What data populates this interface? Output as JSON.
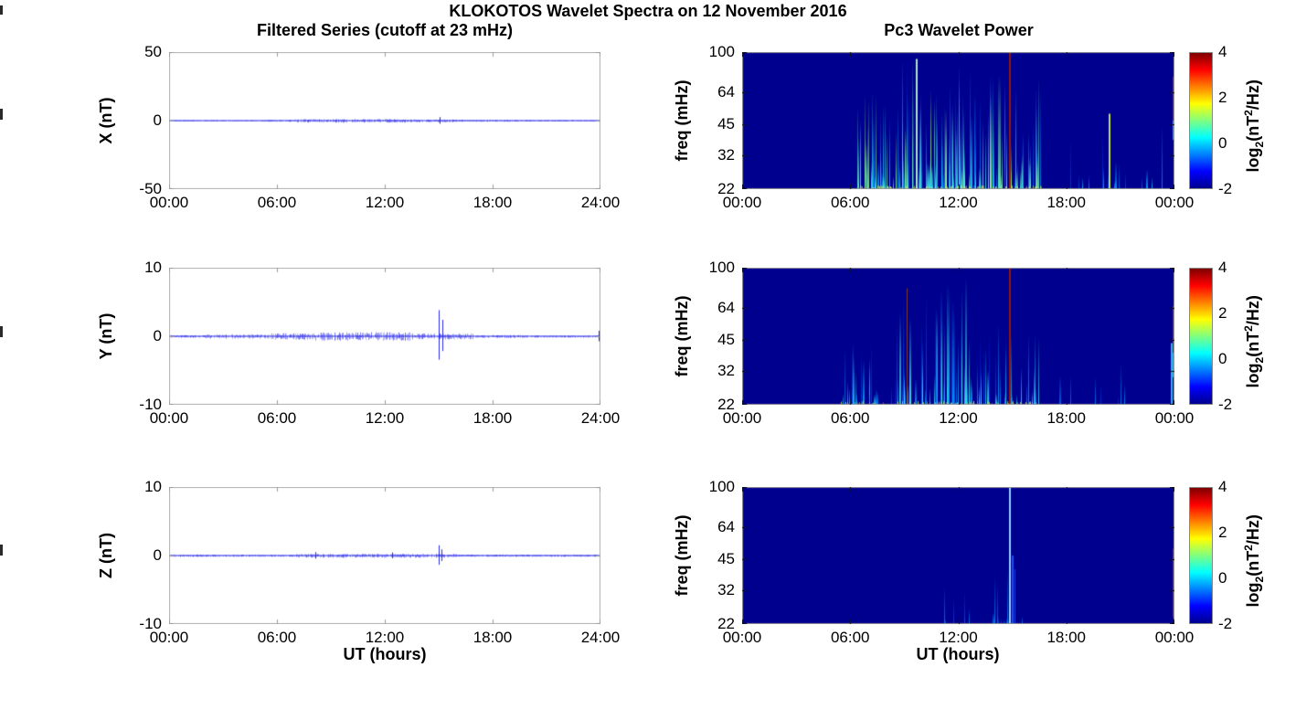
{
  "figure": {
    "title": "KLOKOTOS Wavelet Spectra on 12 November 2016"
  },
  "columns": {
    "left_title": "Filtered Series (cutoff at 23 mHz)",
    "right_title": "Pc3 Wavelet Power",
    "xlabel_left": "UT (hours)",
    "xlabel_right": "UT (hours)"
  },
  "colors": {
    "trace": "#1f1fe8",
    "spec_bg": "#00008f",
    "frame_light": "#b0b0b0",
    "tick_light": "#9c9c9c",
    "frame_dark": "#9a9a9a",
    "tick_dark": "#141414",
    "colorbar_stops": [
      [
        "#00008F",
        0
      ],
      [
        "#0000FF",
        12.5
      ],
      [
        "#00FFFF",
        37.5
      ],
      [
        "#FFFF00",
        62.5
      ],
      [
        "#FF0000",
        87.5
      ],
      [
        "#7F0000",
        100
      ]
    ],
    "streak_palette": [
      [
        0,
        [
          0,
          40,
          210
        ]
      ],
      [
        0.3,
        [
          0,
          150,
          255
        ]
      ],
      [
        0.55,
        [
          60,
          230,
          230
        ]
      ],
      [
        0.75,
        [
          150,
          240,
          120
        ]
      ],
      [
        1,
        [
          235,
          255,
          130
        ]
      ]
    ],
    "bottom_glow": "210,240,100"
  },
  "chart_data": [
    {
      "type": "line",
      "id": "x-series",
      "ylabel": "X (nT)",
      "ylim": [
        -50,
        50
      ],
      "yticks": [
        "50",
        "0",
        "-50"
      ],
      "ytick_values": [
        50,
        0,
        -50
      ],
      "x_hours": [
        0,
        24
      ],
      "xticks": [
        "00:00",
        "06:00",
        "12:00",
        "18:00",
        "24:00"
      ],
      "noise_envelope_nT": [
        [
          0,
          5.3,
          0.22
        ],
        [
          5.3,
          7,
          0.5
        ],
        [
          7,
          13.5,
          1.15
        ],
        [
          13.5,
          16,
          0.9
        ],
        [
          16,
          19.5,
          0.55
        ],
        [
          19.5,
          24,
          0.35
        ]
      ],
      "spikes": [
        {
          "t": 15.05,
          "amp": 2.6
        }
      ],
      "seed": 7
    },
    {
      "type": "heatmap",
      "id": "x-wavelet",
      "ylabel": "freq (mHz)",
      "ylim_mHz": [
        22,
        100
      ],
      "yscale": "log2",
      "yticks": [
        "100",
        "64",
        "45",
        "32",
        "22"
      ],
      "ytick_values": [
        100,
        64,
        45,
        32,
        22
      ],
      "x_hours": [
        0,
        24
      ],
      "xticks": [
        "00:00",
        "06:00",
        "12:00",
        "18:00",
        "00:00"
      ],
      "colorbar": {
        "range": [
          -2,
          4
        ],
        "ticks": [
          "4",
          "2",
          "0",
          "-2"
        ],
        "label_parts": {
          "pre": "log",
          "sub": "2",
          "mid": "(nT",
          "sup": "2",
          "post": "/Hz)"
        }
      },
      "activity": [
        {
          "t0": 6.3,
          "t1": 8.6,
          "count": 40,
          "hmax": 0.8,
          "bright": 0.8
        },
        {
          "t0": 8.6,
          "t1": 13.3,
          "count": 95,
          "hmax": 0.97,
          "bright": 0.85
        },
        {
          "t0": 13.3,
          "t1": 16.6,
          "count": 50,
          "hmax": 0.85,
          "bright": 0.8
        },
        {
          "t0": 17.2,
          "t1": 23.5,
          "count": 18,
          "hmax": 0.5,
          "bright": 0.45
        }
      ],
      "notable_lines": [
        {
          "t": 14.8,
          "h": 1.0,
          "color": "#a01800",
          "w": 2
        },
        {
          "t": 9.65,
          "h": 0.95,
          "color": "#baf0c8",
          "w": 2
        },
        {
          "t": 20.35,
          "h": 0.55,
          "color": "#c8e860",
          "w": 2
        }
      ],
      "right_edge": [
        {
          "y0": 0.18,
          "y1": 0.5,
          "color": "#b02000"
        },
        {
          "y0": 0.5,
          "y1": 0.64,
          "color": "#00c8ff"
        }
      ],
      "seed": 21
    },
    {
      "type": "line",
      "id": "y-series",
      "ylabel": "Y (nT)",
      "ylim": [
        -10,
        10
      ],
      "yticks": [
        "10",
        "0",
        "-10"
      ],
      "ytick_values": [
        10,
        0,
        -10
      ],
      "x_hours": [
        0,
        24
      ],
      "xticks": [
        "00:00",
        "06:00",
        "12:00",
        "18:00",
        "24:00"
      ],
      "noise_envelope_nT": [
        [
          0,
          2,
          0.16
        ],
        [
          2,
          5.5,
          0.28
        ],
        [
          5.5,
          8,
          0.45
        ],
        [
          8,
          13.5,
          0.6
        ],
        [
          13.5,
          17,
          0.42
        ],
        [
          17,
          20,
          0.2
        ],
        [
          20,
          24,
          0.14
        ]
      ],
      "spikes": [
        {
          "t": 15.0,
          "amp": 3.8
        },
        {
          "t": 15.18,
          "amp": 2.4
        },
        {
          "t": 23.9,
          "amp": 0.8
        }
      ],
      "seed": 13
    },
    {
      "type": "heatmap",
      "id": "y-wavelet",
      "ylabel": "freq (mHz)",
      "ylim_mHz": [
        22,
        100
      ],
      "yscale": "log2",
      "yticks": [
        "100",
        "64",
        "45",
        "32",
        "22"
      ],
      "ytick_values": [
        100,
        64,
        45,
        32,
        22
      ],
      "x_hours": [
        0,
        24
      ],
      "xticks": [
        "00:00",
        "06:00",
        "12:00",
        "18:00",
        "00:00"
      ],
      "colorbar": {
        "range": [
          -2,
          4
        ],
        "ticks": [
          "4",
          "2",
          "0",
          "-2"
        ],
        "label_parts": {
          "pre": "log",
          "sub": "2",
          "mid": "(nT",
          "sup": "2",
          "post": "/Hz)"
        }
      },
      "activity": [
        {
          "t0": 5.4,
          "t1": 8.4,
          "count": 22,
          "hmax": 0.6,
          "bright": 0.5
        },
        {
          "t0": 8.4,
          "t1": 13.2,
          "count": 65,
          "hmax": 0.95,
          "bright": 0.6
        },
        {
          "t0": 13.2,
          "t1": 16.6,
          "count": 30,
          "hmax": 0.6,
          "bright": 0.55
        },
        {
          "t0": 17.5,
          "t1": 21.5,
          "count": 7,
          "hmax": 0.35,
          "bright": 0.3
        }
      ],
      "notable_lines": [
        {
          "t": 14.8,
          "h": 1.0,
          "color": "#a01800",
          "w": 2
        },
        {
          "t": 9.15,
          "h": 0.85,
          "color": "#8a3c20",
          "w": 1
        },
        {
          "t": 23.8,
          "h": 0.45,
          "color": "#30b8f0",
          "w": 2
        }
      ],
      "right_edge": [
        {
          "y0": 0.28,
          "y1": 0.62,
          "color": "#b02000"
        },
        {
          "y0": 0.62,
          "y1": 0.8,
          "color": "#00c8ff"
        }
      ],
      "seed": 17
    },
    {
      "type": "line",
      "id": "z-series",
      "ylabel": "Z (nT)",
      "ylim": [
        -10,
        10
      ],
      "yticks": [
        "10",
        "0",
        "-10"
      ],
      "ytick_values": [
        10,
        0,
        -10
      ],
      "x_hours": [
        0,
        24
      ],
      "xticks": [
        "00:00",
        "06:00",
        "12:00",
        "18:00",
        "24:00"
      ],
      "noise_envelope_nT": [
        [
          0,
          7,
          0.13
        ],
        [
          7,
          16,
          0.26
        ],
        [
          16,
          24,
          0.13
        ]
      ],
      "spikes": [
        {
          "t": 15.0,
          "amp": 1.5
        },
        {
          "t": 15.15,
          "amp": 0.9
        },
        {
          "t": 8.15,
          "amp": 0.5
        },
        {
          "t": 12.4,
          "amp": 0.45
        }
      ],
      "seed": 19
    },
    {
      "type": "heatmap",
      "id": "z-wavelet",
      "ylabel": "freq (mHz)",
      "ylim_mHz": [
        22,
        100
      ],
      "yscale": "log2",
      "yticks": [
        "100",
        "64",
        "45",
        "32",
        "22"
      ],
      "ytick_values": [
        100,
        64,
        45,
        32,
        22
      ],
      "x_hours": [
        0,
        24
      ],
      "xticks": [
        "00:00",
        "06:00",
        "12:00",
        "18:00",
        "00:00"
      ],
      "colorbar": {
        "range": [
          -2,
          4
        ],
        "ticks": [
          "4",
          "2",
          "0",
          "-2"
        ],
        "label_parts": {
          "pre": "log",
          "sub": "2",
          "mid": "(nT",
          "sup": "2",
          "post": "/Hz)"
        }
      },
      "activity": [
        {
          "t0": 10.8,
          "t1": 15.6,
          "count": 14,
          "hmax": 0.28,
          "bright": 0.25
        },
        {
          "t0": 13.9,
          "t1": 15.3,
          "count": 6,
          "hmax": 0.45,
          "bright": 0.3
        }
      ],
      "notable_lines": [
        {
          "t": 14.8,
          "h": 1.0,
          "color": "#9adcff",
          "w": 2
        },
        {
          "t": 14.95,
          "h": 0.5,
          "color": "#2050ff",
          "w": 2
        },
        {
          "t": 15.1,
          "h": 0.4,
          "color": "#1840e0",
          "w": 1
        }
      ],
      "right_edge": [
        {
          "y0": 0.45,
          "y1": 0.95,
          "color": "#b02000"
        }
      ],
      "seed": 23
    }
  ]
}
